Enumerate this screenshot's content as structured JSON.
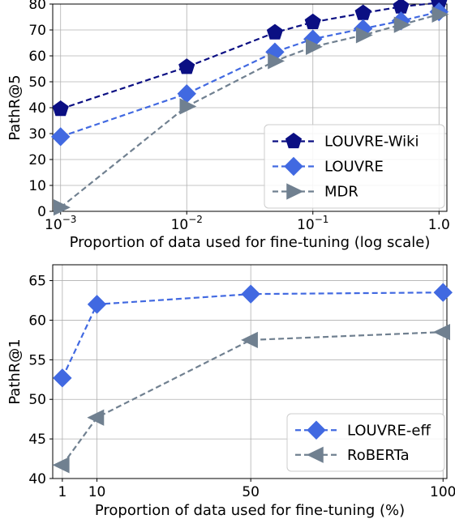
{
  "chart_data": [
    {
      "type": "line",
      "xscale": "log",
      "xlim": [
        0.001,
        1.0
      ],
      "ylim": [
        0,
        80
      ],
      "yticks": [
        0,
        10,
        20,
        30,
        40,
        50,
        60,
        70,
        80
      ],
      "xticks": [
        {
          "value": 0.001,
          "base": "10",
          "exp": "−3"
        },
        {
          "value": 0.01,
          "base": "10",
          "exp": "−2"
        },
        {
          "value": 0.1,
          "base": "10",
          "exp": "−1"
        },
        {
          "value": 1.0,
          "base": "1.0",
          "exp": ""
        }
      ],
      "xlabel": "Proportion of data used for fine-tuning (log scale)",
      "ylabel": "PathR@5",
      "grid": true,
      "legend_position": "bottom-right",
      "x": [
        0.001,
        0.01,
        0.05,
        0.1,
        0.25,
        0.5,
        1.0
      ],
      "series": [
        {
          "name": "LOUVRE-Wiki",
          "color": "#0b0f83",
          "marker": "pentagon",
          "values": [
            39.5,
            55.7,
            69.0,
            73.0,
            76.5,
            79.0,
            80.5
          ]
        },
        {
          "name": "LOUVRE",
          "color": "#4169e1",
          "marker": "diamond",
          "values": [
            28.8,
            45.4,
            61.5,
            66.5,
            70.5,
            73.5,
            77.0
          ]
        },
        {
          "name": "MDR",
          "color": "#708090",
          "marker": "triangle-right",
          "values": [
            1.5,
            40.5,
            58.0,
            63.5,
            68.0,
            72.0,
            76.0
          ]
        }
      ]
    },
    {
      "type": "line",
      "xscale": "linear",
      "xlim": [
        -1.5,
        101
      ],
      "ylim": [
        40,
        67
      ],
      "yticks": [
        40,
        45,
        50,
        55,
        60,
        65
      ],
      "xticks": [
        {
          "value": 1,
          "label": "1"
        },
        {
          "value": 10,
          "label": "10"
        },
        {
          "value": 50,
          "label": "50"
        },
        {
          "value": 100,
          "label": "100"
        }
      ],
      "xlabel": "Proportion of data used for fine-tuning (%)",
      "ylabel": "PathR@1",
      "grid": true,
      "legend_position": "bottom-right",
      "x": [
        1,
        10,
        50,
        100
      ],
      "series": [
        {
          "name": "LOUVRE-eff",
          "color": "#4169e1",
          "marker": "diamond",
          "values": [
            52.7,
            62.0,
            63.3,
            63.5
          ]
        },
        {
          "name": "RoBERTa",
          "color": "#708090",
          "marker": "triangle-left",
          "values": [
            41.7,
            47.7,
            57.5,
            58.5
          ]
        }
      ]
    }
  ]
}
